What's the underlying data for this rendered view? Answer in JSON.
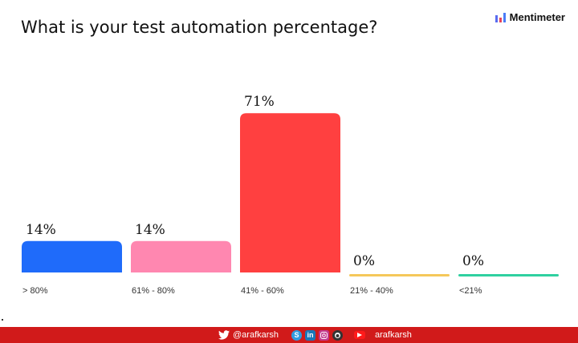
{
  "header": {
    "brand": "Mentimeter",
    "brand_bar_colors": [
      "#5a6cf0",
      "#e8445a",
      "#4a7cf7"
    ]
  },
  "chart_data": {
    "type": "bar",
    "title": "What is your test automation percentage?",
    "categories": [
      "> 80%",
      "61% - 80%",
      "41% - 60%",
      "21% - 40%",
      "<21%"
    ],
    "values": [
      14,
      14,
      71,
      0,
      0
    ],
    "value_labels": [
      "14%",
      "14%",
      "71%",
      "0%",
      "0%"
    ],
    "colors": [
      "#1f6bfa",
      "#ff87b0",
      "#ff4040",
      "#f5c85a",
      "#2fd0a0"
    ],
    "ylim": [
      0,
      100
    ],
    "grid": false,
    "legend": "none"
  },
  "footer": {
    "twitter_icon": "twitter-icon",
    "handle_left": "@arafkarsh",
    "social_icons": [
      "skype-icon",
      "linkedin-icon",
      "instagram-icon",
      "github-icon"
    ],
    "linkedin_text": "in",
    "skype_text": "S",
    "youtube_icon": "youtube-icon",
    "handle_right": "arafkarsh",
    "bar_color": "#d11a1a"
  }
}
